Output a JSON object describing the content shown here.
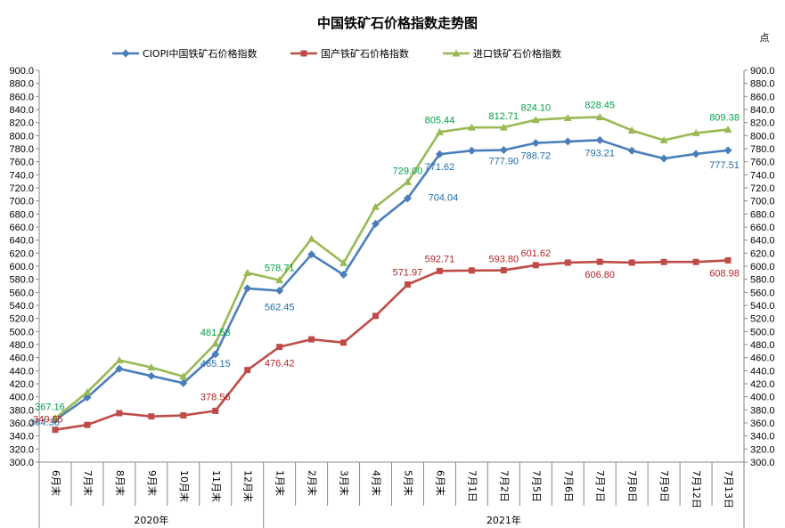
{
  "chart_data": {
    "type": "line",
    "title": "中国铁矿石价格指数走势图",
    "unit_label": "点",
    "ylim": [
      300,
      900
    ],
    "y_step": 20,
    "y_tick_format_decimals": 1,
    "grid": false,
    "legend_position": "top",
    "categories": [
      "6月末",
      "7月末",
      "8月末",
      "9月末",
      "10月末",
      "11月末",
      "12月末",
      "1月末",
      "2月末",
      "3月末",
      "4月末",
      "5月末",
      "6月末",
      "7月1日",
      "7月2日",
      "7月5日",
      "7月6日",
      "7月7日",
      "7月8日",
      "7月9日",
      "7月12日",
      "7月13日"
    ],
    "groups": [
      {
        "label": "2020年",
        "start": 0,
        "end": 6
      },
      {
        "label": "2021年",
        "start": 7,
        "end": 21
      }
    ],
    "series": [
      {
        "name": "CIOPI中国铁矿石价格指数",
        "color": "#4a7ebb",
        "marker": "diamond",
        "values": [
          364.36,
          399.0,
          443.0,
          432.0,
          421.0,
          465.15,
          566.0,
          562.45,
          618.0,
          587.0,
          665.0,
          704.04,
          771.62,
          777.0,
          777.9,
          788.72,
          791.0,
          793.21,
          777.0,
          765.0,
          772.0,
          777.51
        ],
        "labels": [
          {
            "i": 0,
            "text": "364.36"
          },
          {
            "i": 5,
            "text": "465.15"
          },
          {
            "i": 7,
            "text": "562.45"
          },
          {
            "i": 11,
            "text": "704.04"
          },
          {
            "i": 12,
            "text": "771.62"
          },
          {
            "i": 14,
            "text": "777.90"
          },
          {
            "i": 15,
            "text": "788.72"
          },
          {
            "i": 17,
            "text": "793.21"
          },
          {
            "i": 21,
            "text": "777.51"
          }
        ]
      },
      {
        "name": "国产铁矿石价格指数",
        "color": "#be4b48",
        "marker": "square",
        "values": [
          349.55,
          357.0,
          375.0,
          370.0,
          371.5,
          378.56,
          441.0,
          476.42,
          488.0,
          483.0,
          524.0,
          571.97,
          592.71,
          593.5,
          593.8,
          601.62,
          605.5,
          606.8,
          605.5,
          606.5,
          606.5,
          608.98
        ],
        "labels": [
          {
            "i": 0,
            "text": "349.55"
          },
          {
            "i": 5,
            "text": "378.56"
          },
          {
            "i": 7,
            "text": "476.42"
          },
          {
            "i": 11,
            "text": "571.97"
          },
          {
            "i": 12,
            "text": "592.71"
          },
          {
            "i": 14,
            "text": "593.80"
          },
          {
            "i": 15,
            "text": "601.62"
          },
          {
            "i": 17,
            "text": "606.80"
          },
          {
            "i": 21,
            "text": "608.98"
          }
        ]
      },
      {
        "name": "进口铁矿石价格指数",
        "color": "#98b954",
        "marker": "triangle",
        "values": [
          367.16,
          407.0,
          456.0,
          445.0,
          431.0,
          481.53,
          590.0,
          578.71,
          642.0,
          605.0,
          691.0,
          729.0,
          805.44,
          812.5,
          812.71,
          824.1,
          827.0,
          828.45,
          808.0,
          793.0,
          804.0,
          809.38
        ],
        "labels": [
          {
            "i": 0,
            "text": "367.16"
          },
          {
            "i": 5,
            "text": "481.53"
          },
          {
            "i": 7,
            "text": "578.71"
          },
          {
            "i": 11,
            "text": "729.00"
          },
          {
            "i": 12,
            "text": "805.44"
          },
          {
            "i": 14,
            "text": "812.71"
          },
          {
            "i": 15,
            "text": "824.10"
          },
          {
            "i": 17,
            "text": "828.45"
          },
          {
            "i": 21,
            "text": "809.38"
          }
        ]
      }
    ]
  },
  "label_colors": {
    "CIOPI中国铁矿石价格指数": "#1f6aa5",
    "国产铁矿石价格指数": "#b22222",
    "进口铁矿石价格指数": "#00a04a"
  }
}
